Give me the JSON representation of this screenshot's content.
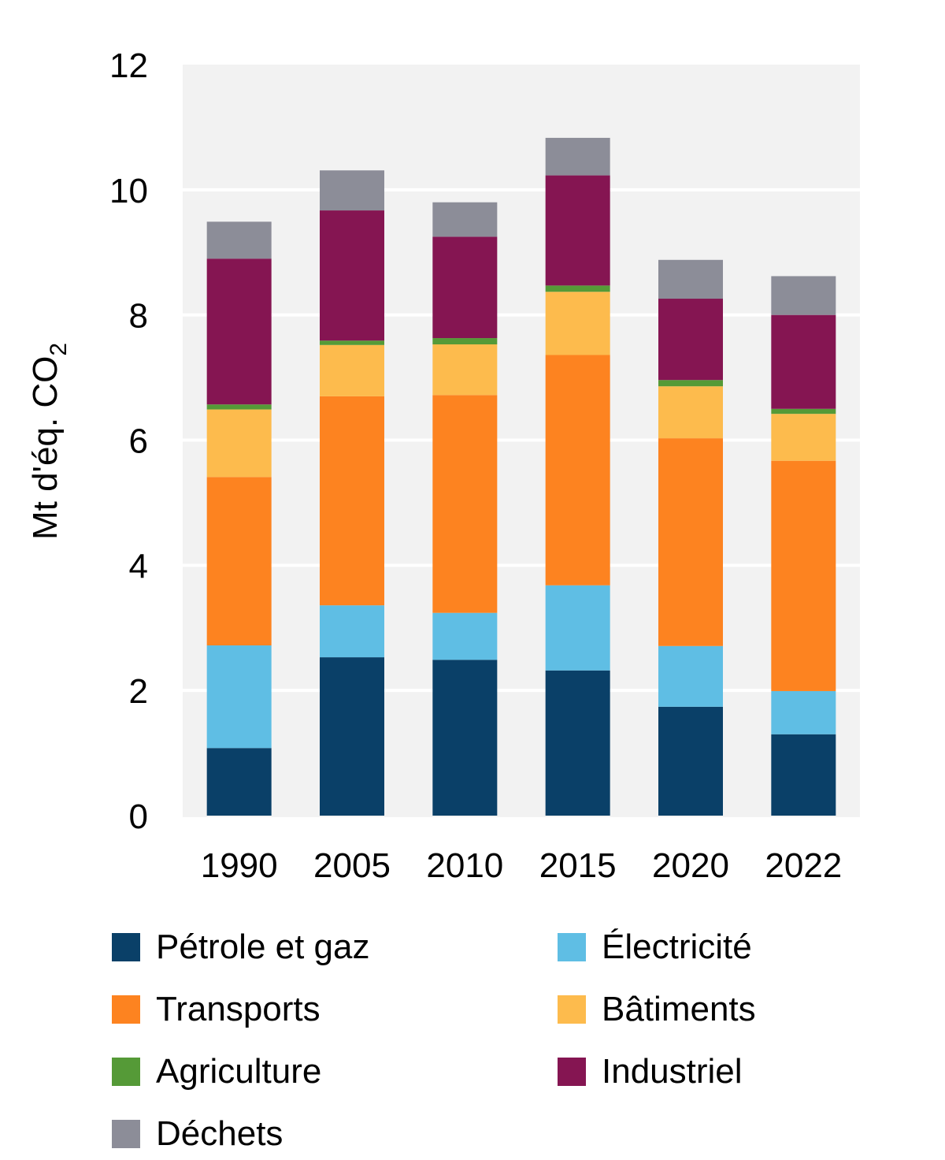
{
  "chart_data": {
    "type": "bar",
    "stacked": true,
    "categories": [
      "1990",
      "2005",
      "2010",
      "2015",
      "2020",
      "2022"
    ],
    "ylabel_main": "Mt d'éq. CO",
    "ylabel_sub": "2",
    "ylim": [
      0,
      12
    ],
    "yticks": [
      "0",
      "2",
      "4",
      "6",
      "8",
      "10",
      "12"
    ],
    "grid": true,
    "legend_position": "bottom",
    "series": [
      {
        "name": "Pétrole et gaz",
        "color": "#0a4068",
        "values": [
          1.08,
          2.53,
          2.49,
          2.32,
          1.74,
          1.3
        ]
      },
      {
        "name": "Électricité",
        "color": "#5fbee4",
        "values": [
          1.64,
          0.83,
          0.75,
          1.36,
          0.97,
          0.69
        ]
      },
      {
        "name": "Transports",
        "color": "#fd8320",
        "values": [
          2.69,
          3.34,
          3.48,
          3.68,
          3.32,
          3.68
        ]
      },
      {
        "name": "Bâtiments",
        "color": "#fdbb4d",
        "values": [
          1.08,
          0.82,
          0.81,
          1.01,
          0.83,
          0.75
        ]
      },
      {
        "name": "Agriculture",
        "color": "#559a37",
        "values": [
          0.08,
          0.07,
          0.1,
          0.1,
          0.1,
          0.08
        ]
      },
      {
        "name": "Industriel",
        "color": "#851552",
        "values": [
          2.33,
          2.08,
          1.62,
          1.76,
          1.3,
          1.5
        ]
      },
      {
        "name": "Déchets",
        "color": "#8c8d98",
        "values": [
          0.59,
          0.64,
          0.55,
          0.6,
          0.62,
          0.62
        ]
      }
    ]
  }
}
